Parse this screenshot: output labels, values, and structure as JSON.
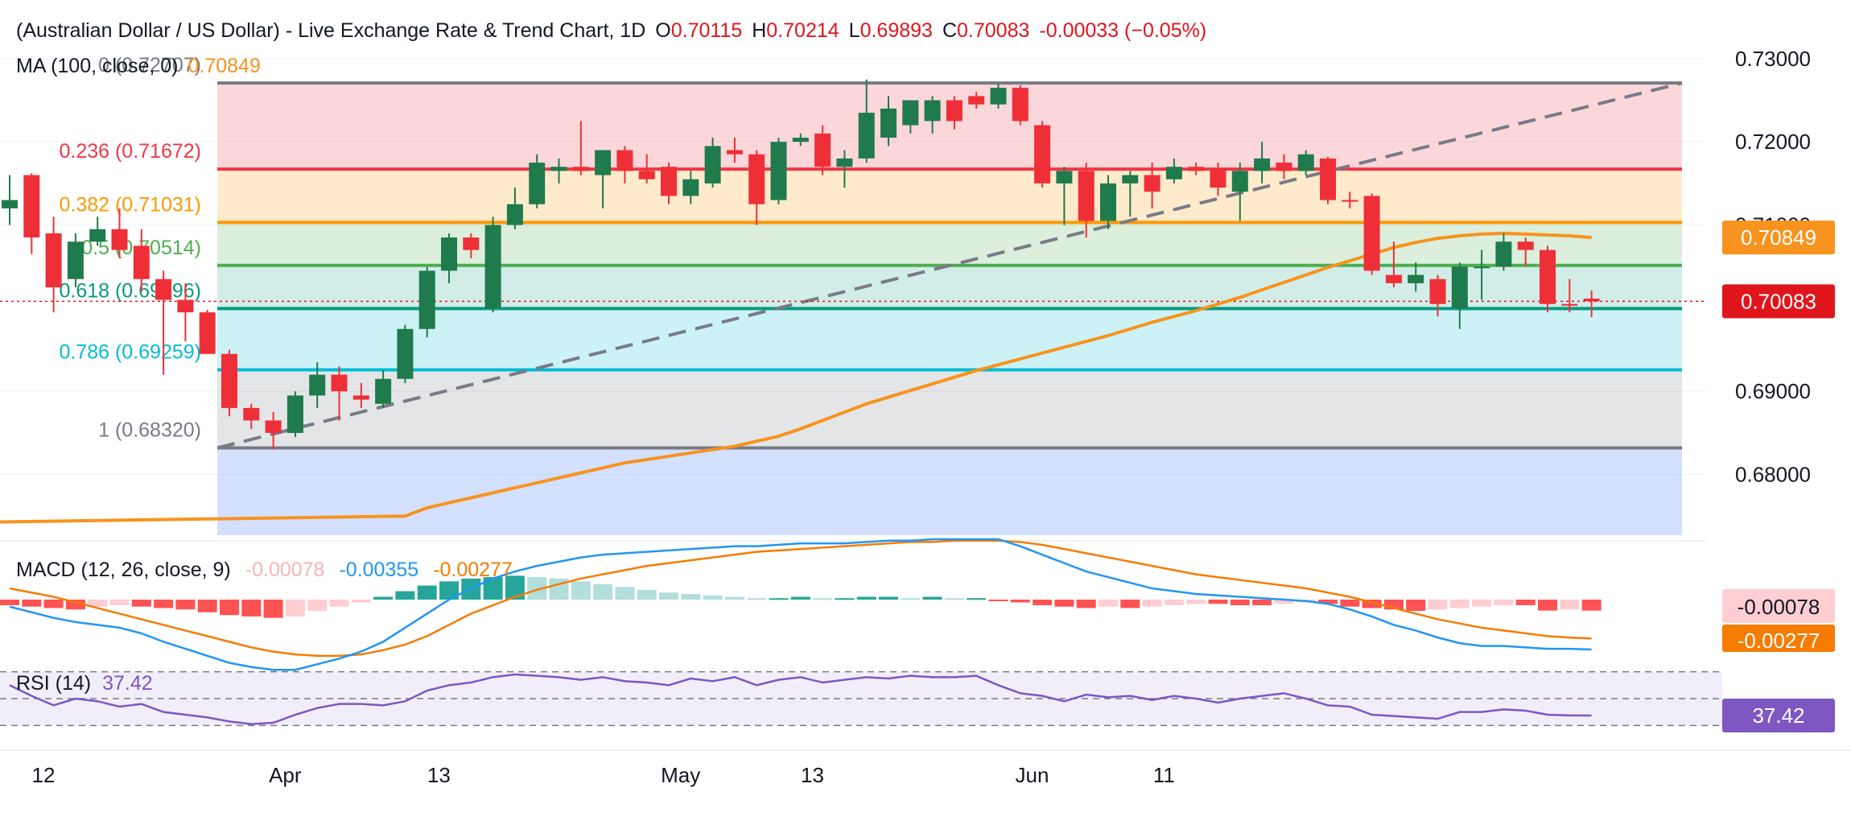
{
  "header": {
    "title": "(Australian Dollar / US Dollar) - Live Exchange Rate & Trend Chart, 1D",
    "o_label": "O",
    "o_value": "0.70115",
    "h_label": "H",
    "h_value": "0.70214",
    "l_label": "L",
    "l_value": "0.69893",
    "c_label": "C",
    "c_value": "0.70083",
    "change": "-0.00033 (−0.05%)",
    "ma_label": "MA (100, close, 0)",
    "ma_value": "0.70849"
  },
  "colors": {
    "up": "#26a69a",
    "up_dark": "#1f7a4c",
    "down": "#ef2f37",
    "ma": "#f7931e",
    "macd_line": "#2196f3",
    "signal_line": "#f57c00",
    "rsi_line": "#7e57c2",
    "price_badge": "#e0151c",
    "ma_badge": "#f7931e",
    "rsi_badge": "#7e57c2"
  },
  "fib_levels": [
    {
      "ratio": "0",
      "text": "0 (0.72707)",
      "price": 0.72707,
      "color": "#787b86",
      "fill": "rgba(242,54,69,0.20)"
    },
    {
      "ratio": "0.236",
      "text": "0.236 (0.71672)",
      "price": 0.71672,
      "color": "#f23645",
      "fill": "rgba(255,152,0,0.20)"
    },
    {
      "ratio": "0.382",
      "text": "0.382 (0.71031)",
      "price": 0.71031,
      "color": "#ff9800",
      "fill": "rgba(76,175,80,0.20)"
    },
    {
      "ratio": "0.5",
      "text": "0.5 (0.70514)",
      "price": 0.70514,
      "color": "#4caf50",
      "fill": "rgba(8,153,129,0.18)"
    },
    {
      "ratio": "0.618",
      "text": "0.618 (0.69996)",
      "price": 0.69996,
      "color": "#089981",
      "fill": "rgba(0,188,212,0.20)"
    },
    {
      "ratio": "0.786",
      "text": "0.786 (0.69259)",
      "price": 0.69259,
      "color": "#00bcd4",
      "fill": "rgba(120,123,134,0.20)"
    },
    {
      "ratio": "1",
      "text": "1 (0.68320)",
      "price": 0.6832,
      "color": "#787b86",
      "fill": "rgba(41,98,255,0.20)"
    }
  ],
  "price_axis": {
    "ticks": [
      "0.73000",
      "0.72000",
      "0.71000",
      "0.69000",
      "0.68000"
    ],
    "tick_values": [
      0.73,
      0.72,
      0.71,
      0.69,
      0.68
    ],
    "ylim": [
      0.6727,
      0.7327
    ]
  },
  "badges": {
    "ma": "0.70849",
    "price": "0.70083",
    "macd_hist": "-0.00078",
    "macd_signal": "-0.00277",
    "rsi": "37.42"
  },
  "x_axis": {
    "labels": [
      "12",
      "Apr",
      "13",
      "May",
      "13",
      "Jun",
      "11"
    ],
    "label_bars": [
      0,
      11,
      18,
      29,
      35,
      45,
      51
    ]
  },
  "macd": {
    "label": "MACD (12, 26, close, 9)",
    "hist": "-0.00078",
    "macd": "-0.00355",
    "signal": "-0.00277"
  },
  "rsi": {
    "label": "RSI (14)",
    "value": "37.42"
  },
  "chart_data": {
    "type": "candlestick",
    "title": "(Australian Dollar / US Dollar) - Live Exchange Rate & Trend Chart, 1D",
    "candles": [
      {
        "o": 0.712,
        "h": 0.716,
        "l": 0.71,
        "c": 0.713
      },
      {
        "o": 0.716,
        "h": 0.7162,
        "l": 0.7065,
        "c": 0.7085
      },
      {
        "o": 0.709,
        "h": 0.711,
        "l": 0.6995,
        "c": 0.7025
      },
      {
        "o": 0.7035,
        "h": 0.709,
        "l": 0.7025,
        "c": 0.708
      },
      {
        "o": 0.708,
        "h": 0.711,
        "l": 0.7075,
        "c": 0.7095
      },
      {
        "o": 0.7095,
        "h": 0.712,
        "l": 0.706,
        "c": 0.707
      },
      {
        "o": 0.7075,
        "h": 0.7095,
        "l": 0.702,
        "c": 0.7035
      },
      {
        "o": 0.7035,
        "h": 0.7045,
        "l": 0.692,
        "c": 0.701
      },
      {
        "o": 0.701,
        "h": 0.703,
        "l": 0.696,
        "c": 0.6995
      },
      {
        "o": 0.6995,
        "h": 0.6998,
        "l": 0.6945,
        "c": 0.6945
      },
      {
        "o": 0.6945,
        "h": 0.695,
        "l": 0.687,
        "c": 0.688
      },
      {
        "o": 0.688,
        "h": 0.6885,
        "l": 0.6855,
        "c": 0.6865
      },
      {
        "o": 0.6865,
        "h": 0.6875,
        "l": 0.683,
        "c": 0.685
      },
      {
        "o": 0.685,
        "h": 0.69,
        "l": 0.6845,
        "c": 0.6895
      },
      {
        "o": 0.6895,
        "h": 0.6935,
        "l": 0.688,
        "c": 0.692
      },
      {
        "o": 0.692,
        "h": 0.693,
        "l": 0.6865,
        "c": 0.69
      },
      {
        "o": 0.6895,
        "h": 0.691,
        "l": 0.688,
        "c": 0.689
      },
      {
        "o": 0.6885,
        "h": 0.6925,
        "l": 0.688,
        "c": 0.6915
      },
      {
        "o": 0.6915,
        "h": 0.698,
        "l": 0.691,
        "c": 0.6975
      },
      {
        "o": 0.6975,
        "h": 0.705,
        "l": 0.6965,
        "c": 0.7045
      },
      {
        "o": 0.7045,
        "h": 0.709,
        "l": 0.703,
        "c": 0.7085
      },
      {
        "o": 0.7085,
        "h": 0.709,
        "l": 0.706,
        "c": 0.707
      },
      {
        "o": 0.7,
        "h": 0.711,
        "l": 0.6995,
        "c": 0.71
      },
      {
        "o": 0.71,
        "h": 0.7145,
        "l": 0.7095,
        "c": 0.7125
      },
      {
        "o": 0.7125,
        "h": 0.7185,
        "l": 0.712,
        "c": 0.7175
      },
      {
        "o": 0.7165,
        "h": 0.718,
        "l": 0.715,
        "c": 0.717
      },
      {
        "o": 0.717,
        "h": 0.7225,
        "l": 0.716,
        "c": 0.7165
      },
      {
        "o": 0.716,
        "h": 0.719,
        "l": 0.712,
        "c": 0.719
      },
      {
        "o": 0.719,
        "h": 0.7195,
        "l": 0.715,
        "c": 0.7165
      },
      {
        "o": 0.7165,
        "h": 0.7185,
        "l": 0.715,
        "c": 0.7155
      },
      {
        "o": 0.717,
        "h": 0.7175,
        "l": 0.7125,
        "c": 0.7135
      },
      {
        "o": 0.7135,
        "h": 0.7165,
        "l": 0.7125,
        "c": 0.7155
      },
      {
        "o": 0.715,
        "h": 0.7205,
        "l": 0.7145,
        "c": 0.7195
      },
      {
        "o": 0.719,
        "h": 0.7205,
        "l": 0.7175,
        "c": 0.7185
      },
      {
        "o": 0.7185,
        "h": 0.719,
        "l": 0.71,
        "c": 0.7125
      },
      {
        "o": 0.713,
        "h": 0.7205,
        "l": 0.7125,
        "c": 0.72
      },
      {
        "o": 0.72,
        "h": 0.721,
        "l": 0.7195,
        "c": 0.7205
      },
      {
        "o": 0.721,
        "h": 0.722,
        "l": 0.716,
        "c": 0.717
      },
      {
        "o": 0.717,
        "h": 0.719,
        "l": 0.7145,
        "c": 0.718
      },
      {
        "o": 0.718,
        "h": 0.7275,
        "l": 0.7175,
        "c": 0.7235
      },
      {
        "o": 0.7205,
        "h": 0.7255,
        "l": 0.7195,
        "c": 0.724
      },
      {
        "o": 0.722,
        "h": 0.725,
        "l": 0.721,
        "c": 0.725
      },
      {
        "o": 0.7225,
        "h": 0.7255,
        "l": 0.721,
        "c": 0.725
      },
      {
        "o": 0.725,
        "h": 0.7255,
        "l": 0.7215,
        "c": 0.7225
      },
      {
        "o": 0.7255,
        "h": 0.726,
        "l": 0.724,
        "c": 0.7245
      },
      {
        "o": 0.7245,
        "h": 0.727,
        "l": 0.724,
        "c": 0.7265
      },
      {
        "o": 0.7265,
        "h": 0.7268,
        "l": 0.722,
        "c": 0.7225
      },
      {
        "o": 0.722,
        "h": 0.7225,
        "l": 0.7145,
        "c": 0.715
      },
      {
        "o": 0.715,
        "h": 0.717,
        "l": 0.71,
        "c": 0.7165
      },
      {
        "o": 0.7165,
        "h": 0.7175,
        "l": 0.7085,
        "c": 0.7105
      },
      {
        "o": 0.7105,
        "h": 0.716,
        "l": 0.7095,
        "c": 0.715
      },
      {
        "o": 0.715,
        "h": 0.7165,
        "l": 0.711,
        "c": 0.716
      },
      {
        "o": 0.716,
        "h": 0.7175,
        "l": 0.712,
        "c": 0.714
      },
      {
        "o": 0.7155,
        "h": 0.718,
        "l": 0.715,
        "c": 0.717
      },
      {
        "o": 0.717,
        "h": 0.7175,
        "l": 0.716,
        "c": 0.7165
      },
      {
        "o": 0.7168,
        "h": 0.7175,
        "l": 0.7135,
        "c": 0.7145
      },
      {
        "o": 0.714,
        "h": 0.7175,
        "l": 0.7105,
        "c": 0.7165
      },
      {
        "o": 0.7165,
        "h": 0.72,
        "l": 0.715,
        "c": 0.718
      },
      {
        "o": 0.7175,
        "h": 0.7185,
        "l": 0.7155,
        "c": 0.7165
      },
      {
        "o": 0.7165,
        "h": 0.719,
        "l": 0.716,
        "c": 0.7185
      },
      {
        "o": 0.718,
        "h": 0.7182,
        "l": 0.7125,
        "c": 0.713
      },
      {
        "o": 0.713,
        "h": 0.714,
        "l": 0.712,
        "c": 0.7128
      },
      {
        "o": 0.7135,
        "h": 0.7138,
        "l": 0.704,
        "c": 0.7045
      },
      {
        "o": 0.704,
        "h": 0.708,
        "l": 0.7025,
        "c": 0.703
      },
      {
        "o": 0.703,
        "h": 0.7055,
        "l": 0.702,
        "c": 0.704
      },
      {
        "o": 0.7035,
        "h": 0.704,
        "l": 0.699,
        "c": 0.7005
      },
      {
        "o": 0.7,
        "h": 0.7055,
        "l": 0.6975,
        "c": 0.705
      },
      {
        "o": 0.705,
        "h": 0.707,
        "l": 0.701,
        "c": 0.705
      },
      {
        "o": 0.705,
        "h": 0.709,
        "l": 0.7045,
        "c": 0.708
      },
      {
        "o": 0.708,
        "h": 0.7085,
        "l": 0.705,
        "c": 0.707
      },
      {
        "o": 0.707,
        "h": 0.7075,
        "l": 0.6995,
        "c": 0.7005
      },
      {
        "o": 0.7005,
        "h": 0.7035,
        "l": 0.6995,
        "c": 0.7003
      },
      {
        "o": 0.70115,
        "h": 0.70214,
        "l": 0.69893,
        "c": 0.70083
      }
    ],
    "ma100": [
      0.675,
      0.676,
      0.6766,
      0.6772,
      0.6778,
      0.6784,
      0.679,
      0.6796,
      0.6802,
      0.6808,
      0.6814,
      0.6818,
      0.6822,
      0.6826,
      0.683,
      0.6834,
      0.684,
      0.6846,
      0.6855,
      0.6865,
      0.6875,
      0.6885,
      0.6893,
      0.6901,
      0.6909,
      0.6917,
      0.6925,
      0.6932,
      0.6939,
      0.6946,
      0.6953,
      0.696,
      0.6967,
      0.6975,
      0.6983,
      0.699,
      0.6997,
      0.7005,
      0.7013,
      0.7022,
      0.7031,
      0.704,
      0.7049,
      0.7057,
      0.7065,
      0.7073,
      0.7079,
      0.7084,
      0.7087,
      0.7089,
      0.709,
      0.7089,
      0.7088,
      0.7087,
      0.70849
    ],
    "macd_hist": [
      -0.0004,
      -0.0005,
      -0.0006,
      -0.0007,
      -0.0005,
      -0.0004,
      -0.0005,
      -0.0006,
      -0.0007,
      -0.0009,
      -0.0011,
      -0.0012,
      -0.0013,
      -0.0012,
      -0.0008,
      -0.0005,
      -0.0002,
      0.0002,
      0.0006,
      0.001,
      0.0013,
      0.0015,
      0.0016,
      0.0017,
      0.0016,
      0.0015,
      0.0013,
      0.0011,
      0.0009,
      0.0007,
      0.0005,
      0.0004,
      0.0003,
      0.0002,
      0.0001,
      0.0001,
      0.0002,
      0.0001,
      0.0001,
      0.0002,
      0.0002,
      0.0001,
      0.0002,
      0.0001,
      0.0001,
      -0.0001,
      -0.0002,
      -0.0004,
      -0.0005,
      -0.0006,
      -0.0005,
      -0.0006,
      -0.0005,
      -0.0004,
      -0.0003,
      -0.0003,
      -0.0004,
      -0.0004,
      -0.0003,
      -0.0002,
      -0.0003,
      -0.0005,
      -0.0006,
      -0.0007,
      -0.0008,
      -0.0007,
      -0.0006,
      -0.0005,
      -0.0004,
      -0.0004,
      -0.00078,
      -0.0007,
      -0.00078
    ],
    "macd_line": [
      -0.0005,
      -0.0009,
      -0.0013,
      -0.0016,
      -0.0018,
      -0.002,
      -0.0024,
      -0.003,
      -0.0035,
      -0.004,
      -0.0045,
      -0.0048,
      -0.005,
      -0.005,
      -0.0046,
      -0.0042,
      -0.0037,
      -0.003,
      -0.002,
      -0.001,
      0.0,
      0.0008,
      0.0015,
      0.002,
      0.0024,
      0.0027,
      0.003,
      0.0032,
      0.0033,
      0.0034,
      0.0035,
      0.0036,
      0.0037,
      0.0038,
      0.0038,
      0.0039,
      0.004,
      0.004,
      0.004,
      0.0041,
      0.0042,
      0.0042,
      0.0043,
      0.0043,
      0.0043,
      0.0043,
      0.0038,
      0.0032,
      0.0026,
      0.002,
      0.0016,
      0.0012,
      0.0008,
      0.0006,
      0.0004,
      0.0003,
      0.0002,
      0.0001,
      0.0,
      -0.0001,
      -0.0003,
      -0.0007,
      -0.0012,
      -0.0018,
      -0.0022,
      -0.0027,
      -0.0031,
      -0.0033,
      -0.0033,
      -0.0034,
      -0.0035,
      -0.0035,
      -0.00355
    ],
    "signal_line": [
      0.0008,
      0.0005,
      0.0002,
      -0.0002,
      -0.0006,
      -0.001,
      -0.0014,
      -0.0018,
      -0.0022,
      -0.0026,
      -0.003,
      -0.0034,
      -0.0037,
      -0.0039,
      -0.004,
      -0.004,
      -0.0039,
      -0.0036,
      -0.0032,
      -0.0026,
      -0.0018,
      -0.001,
      -0.0004,
      0.0002,
      0.0007,
      0.0011,
      0.0015,
      0.0018,
      0.0021,
      0.0024,
      0.0026,
      0.0028,
      0.003,
      0.0032,
      0.0034,
      0.0035,
      0.0036,
      0.0037,
      0.0038,
      0.0039,
      0.004,
      0.0041,
      0.0041,
      0.0042,
      0.0042,
      0.0042,
      0.0041,
      0.0039,
      0.0036,
      0.0033,
      0.003,
      0.0027,
      0.0024,
      0.0021,
      0.0018,
      0.0016,
      0.0014,
      0.0012,
      0.001,
      0.0008,
      0.0005,
      0.0002,
      -0.0002,
      -0.0006,
      -0.001,
      -0.0014,
      -0.0017,
      -0.002,
      -0.0022,
      -0.0024,
      -0.0026,
      -0.0027,
      -0.00277
    ],
    "rsi": [
      60,
      52,
      45,
      50,
      48,
      44,
      46,
      40,
      38,
      36,
      33,
      31,
      32,
      38,
      43,
      46,
      46,
      45,
      48,
      56,
      60,
      62,
      66,
      68,
      67,
      66,
      64,
      66,
      63,
      62,
      60,
      65,
      63,
      66,
      60,
      64,
      66,
      62,
      64,
      66,
      65,
      67,
      66,
      66,
      67,
      60,
      54,
      52,
      48,
      53,
      51,
      52,
      49,
      52,
      50,
      47,
      50,
      52,
      54,
      50,
      45,
      44,
      38,
      37,
      36,
      35,
      40,
      40,
      42,
      41,
      38,
      37.5,
      37.42
    ],
    "rsi_ylim": [
      20,
      80
    ],
    "macd_ylim": [
      -0.0055,
      0.0055
    ]
  }
}
